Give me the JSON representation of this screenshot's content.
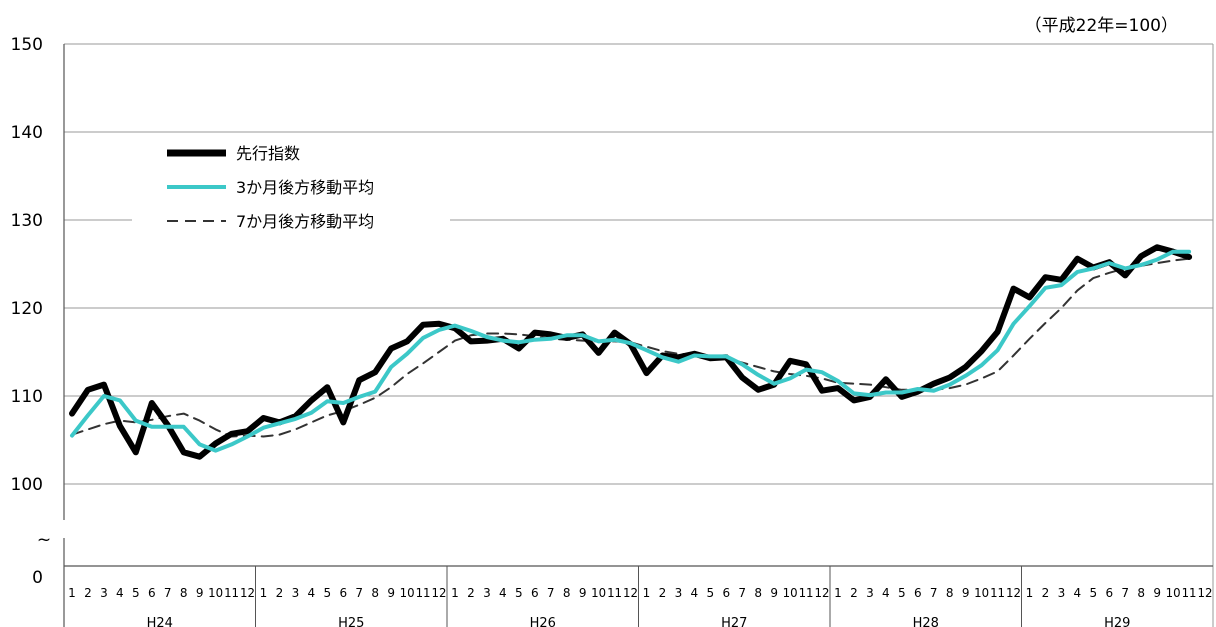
{
  "chart_data": {
    "type": "line",
    "unit_note": "（平成22年=100）",
    "ylim": [
      100,
      150
    ],
    "y_ticks": [
      "150",
      "140",
      "130",
      "120",
      "110",
      "100"
    ],
    "y_break_tick": "0",
    "y_break_mark": "~",
    "grid": true,
    "legend_position": "top-left",
    "years": [
      "H24",
      "H25",
      "H26",
      "H27",
      "H28",
      "H29"
    ],
    "months": [
      "1",
      "2",
      "3",
      "4",
      "5",
      "6",
      "7",
      "8",
      "9",
      "10",
      "11",
      "12"
    ],
    "series": [
      {
        "name": "先行指数",
        "color": "#000000",
        "style": "thick",
        "values": [
          108.0,
          110.7,
          111.3,
          106.6,
          103.6,
          109.2,
          106.7,
          103.6,
          103.1,
          104.6,
          105.7,
          106.0,
          107.5,
          107.0,
          107.7,
          109.5,
          111.0,
          107.0,
          111.8,
          112.7,
          115.4,
          116.2,
          118.1,
          118.2,
          117.7,
          116.2,
          116.3,
          116.5,
          115.4,
          117.2,
          117.0,
          116.6,
          117.0,
          114.9,
          117.2,
          115.9,
          112.6,
          114.6,
          114.4,
          114.8,
          114.3,
          114.4,
          112.1,
          110.7,
          111.3,
          114.0,
          113.6,
          110.6,
          110.9,
          109.5,
          109.9,
          111.9,
          109.9,
          110.5,
          111.4,
          112.1,
          113.3,
          115.1,
          117.3,
          122.2,
          121.2,
          123.5,
          123.2,
          125.6,
          124.6,
          125.2,
          123.7,
          125.9,
          126.9,
          126.4,
          125.8
        ]
      },
      {
        "name": "3か月後方移動平均",
        "color": "#3cc8c8",
        "style": "medium",
        "values": [
          105.5,
          107.8,
          110.0,
          109.5,
          107.2,
          106.5,
          106.5,
          106.5,
          104.5,
          103.8,
          104.5,
          105.4,
          106.4,
          106.9,
          107.4,
          108.1,
          109.4,
          109.2,
          109.9,
          110.5,
          113.3,
          114.8,
          116.6,
          117.5,
          118.0,
          117.4,
          116.7,
          116.3,
          116.1,
          116.4,
          116.5,
          116.9,
          116.9,
          116.2,
          116.4,
          116.0,
          115.2,
          114.4,
          113.9,
          114.6,
          114.5,
          114.5,
          113.6,
          112.4,
          111.4,
          112.0,
          113.0,
          112.7,
          111.7,
          110.3,
          110.1,
          110.4,
          110.4,
          110.8,
          110.6,
          111.3,
          112.3,
          113.5,
          115.2,
          118.2,
          120.2,
          122.3,
          122.6,
          124.1,
          124.5,
          125.1,
          124.5,
          124.9,
          125.5,
          126.4,
          126.4
        ]
      },
      {
        "name": "7か月後方移動平均",
        "color": "#333333",
        "style": "dashed",
        "values": [
          105.6,
          106.2,
          106.8,
          107.2,
          107.0,
          107.3,
          107.7,
          108.0,
          107.2,
          106.2,
          105.4,
          105.5,
          105.4,
          105.6,
          106.2,
          107.0,
          107.8,
          108.3,
          109.0,
          109.8,
          111.0,
          112.5,
          113.7,
          115.0,
          116.3,
          116.9,
          117.1,
          117.1,
          117.0,
          116.8,
          116.5,
          116.4,
          116.3,
          116.2,
          116.2,
          116.1,
          115.6,
          115.1,
          114.8,
          114.7,
          114.5,
          114.3,
          113.8,
          113.3,
          112.8,
          112.5,
          112.3,
          112.0,
          111.5,
          111.4,
          111.3,
          111.0,
          110.7,
          110.7,
          110.7,
          110.9,
          111.3,
          112.0,
          112.8,
          114.6,
          116.5,
          118.3,
          120.0,
          122.0,
          123.4,
          124.0,
          124.5,
          124.8,
          125.1,
          125.4,
          125.6
        ]
      }
    ]
  }
}
